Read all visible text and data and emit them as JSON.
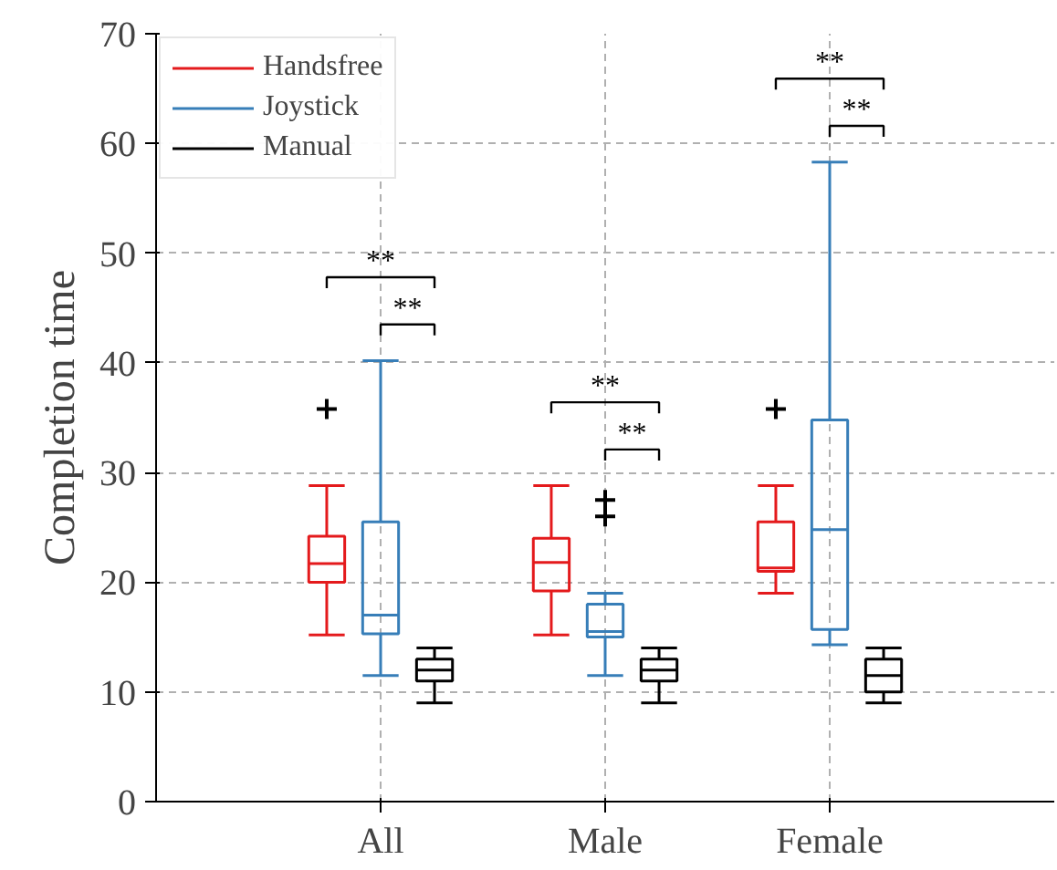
{
  "chart_data": {
    "type": "box",
    "ylabel": "Completion time",
    "categories": [
      "All",
      "Male",
      "Female"
    ],
    "series": [
      {
        "name": "Handsfree",
        "color": "#e41a1c",
        "boxes": [
          {
            "low": 15.2,
            "q1": 20,
            "median": 21.7,
            "q3": 24.2,
            "high": 28.8,
            "outliers": [
              35.8
            ]
          },
          {
            "low": 15.2,
            "q1": 19.2,
            "median": 21.8,
            "q3": 24,
            "high": 28.8
          },
          {
            "low": 19,
            "q1": 21,
            "median": 21.3,
            "q3": 25.5,
            "high": 28.8,
            "outliers": [
              35.8
            ]
          }
        ]
      },
      {
        "name": "Joystick",
        "color": "#377eb8",
        "boxes": [
          {
            "low": 11.5,
            "q1": 15.3,
            "median": 17,
            "q3": 25.5,
            "high": 40.2
          },
          {
            "low": 11.5,
            "q1": 15,
            "median": 15.5,
            "q3": 18,
            "high": 19,
            "outliers": [
              26,
              27.5
            ]
          },
          {
            "low": 14.3,
            "q1": 15.7,
            "median": 24.8,
            "q3": 34.8,
            "high": 58.3
          }
        ]
      },
      {
        "name": "Manual",
        "color": "#000000",
        "boxes": [
          {
            "low": 9,
            "q1": 11,
            "median": 12,
            "q3": 13,
            "high": 14
          },
          {
            "low": 9,
            "q1": 11,
            "median": 12,
            "q3": 13,
            "high": 14
          },
          {
            "low": 9,
            "q1": 10,
            "median": 11.5,
            "q3": 13,
            "high": 14
          }
        ]
      }
    ],
    "annotations": [
      "**",
      "**",
      "**",
      "**",
      "**",
      "**"
    ],
    "ylim": [
      0,
      70
    ],
    "yticks": [
      0,
      10,
      20,
      30,
      40,
      50,
      60,
      70
    ],
    "grid": true,
    "legend": "top left",
    "marker": "cross"
  }
}
